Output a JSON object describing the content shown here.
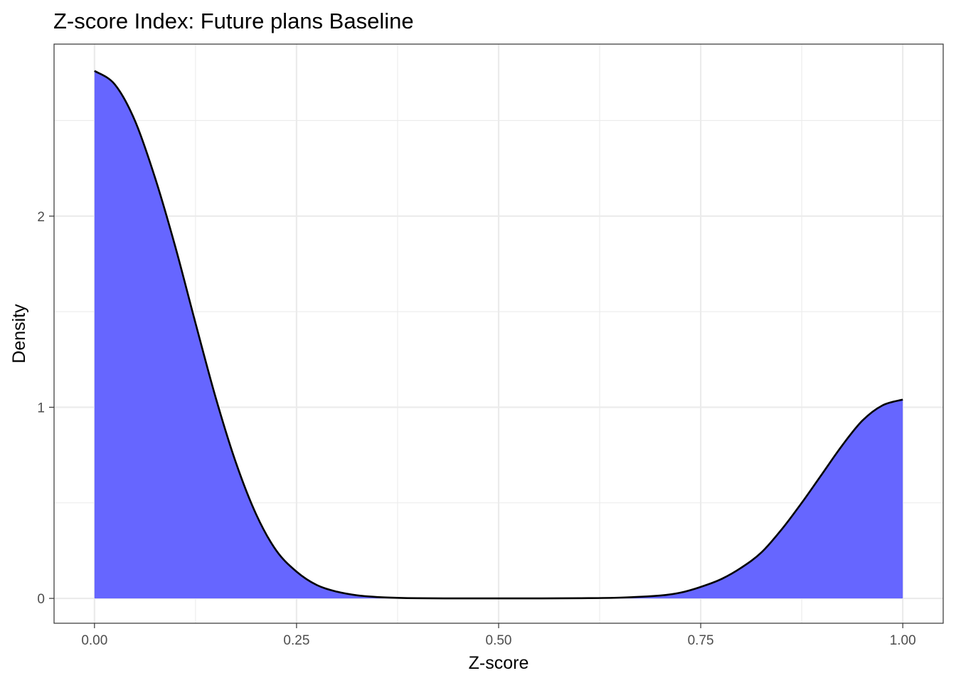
{
  "chart_data": {
    "type": "area",
    "title": "Z-score Index: Future plans Baseline",
    "xlabel": "Z-score",
    "ylabel": "Density",
    "xlim": [
      -0.05,
      1.05
    ],
    "ylim": [
      -0.13,
      2.9
    ],
    "x_ticks": [
      0.0,
      0.25,
      0.5,
      0.75,
      1.0
    ],
    "x_tick_labels": [
      "0.00",
      "0.25",
      "0.50",
      "0.75",
      "1.00"
    ],
    "y_ticks": [
      0,
      1,
      2
    ],
    "y_tick_labels": [
      "0",
      "1",
      "2"
    ],
    "grid": true,
    "fill_color": "#6666ff",
    "line_color": "#000000",
    "series": [
      {
        "x": [
          0.0,
          0.025,
          0.05,
          0.075,
          0.1,
          0.125,
          0.15,
          0.175,
          0.2,
          0.225,
          0.25,
          0.275,
          0.3,
          0.325,
          0.35,
          0.375,
          0.4,
          0.45,
          0.5,
          0.55,
          0.6,
          0.65,
          0.7,
          0.725,
          0.75,
          0.775,
          0.8,
          0.825,
          0.85,
          0.875,
          0.9,
          0.925,
          0.95,
          0.975,
          1.0
        ],
        "y": [
          2.76,
          2.69,
          2.5,
          2.2,
          1.84,
          1.44,
          1.05,
          0.71,
          0.44,
          0.25,
          0.14,
          0.07,
          0.035,
          0.016,
          0.007,
          0.003,
          0.001,
          0.0,
          0.0,
          0.0,
          0.001,
          0.004,
          0.015,
          0.03,
          0.06,
          0.1,
          0.16,
          0.24,
          0.36,
          0.5,
          0.65,
          0.8,
          0.93,
          1.01,
          1.04
        ]
      }
    ]
  }
}
